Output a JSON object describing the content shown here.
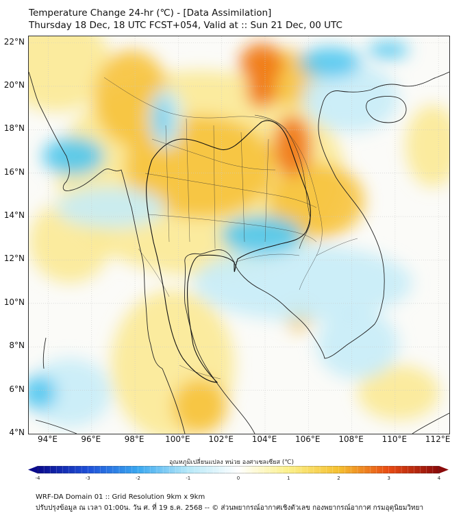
{
  "header": {
    "title": "Temperature Change 24-hr (℃) - [Data Assimilation]",
    "subtitle": "Thursday 18 Dec, 18 UTC FCST+054, Valid at :: Sun 21 Dec, 00 UTC"
  },
  "map": {
    "lat_labels": [
      "22°N",
      "20°N",
      "18°N",
      "16°N",
      "14°N",
      "12°N",
      "10°N",
      "8°N",
      "6°N",
      "4°N"
    ],
    "lon_labels": [
      "94°E",
      "96°E",
      "98°E",
      "100°E",
      "102°E",
      "104°E",
      "106°E",
      "108°E",
      "110°E",
      "112°E"
    ],
    "lat_range": [
      4,
      22.3
    ],
    "lon_range": [
      93.1,
      112.5
    ],
    "gridlines": true,
    "colors": {
      "warm_strong": "#f07a18",
      "warm": "#f7c23a",
      "warm_light": "#fbe994",
      "neutral": "#fbfbf8",
      "cool_light": "#c6ecf7",
      "cool": "#4fc6ef",
      "coastline": "#222222"
    }
  },
  "colorbar": {
    "label": "อุณหภูมิเปลี่ยนแปลง หน่วย องศาเซลเซียส (℃)",
    "ticks": [
      "-4",
      "-3",
      "-2",
      "-1",
      "0",
      "1",
      "2",
      "3",
      "4"
    ],
    "range": [
      -4,
      4
    ],
    "colors": [
      "#0a0a8c",
      "#1e50d8",
      "#3aa8f0",
      "#b6e8f8",
      "#ffffff",
      "#fbf08a",
      "#f5c030",
      "#e84a12",
      "#8a0a0a"
    ]
  },
  "footer": {
    "line1": "WRF-DA Domain 01 :: Grid Resolution 9km x 9km",
    "line2": "ปรับปรุงข้อมูล ณ เวลา 01:00น. วัน ศ. ที่ 19 ธ.ค. 2568 -- © ส่วนพยากรณ์อากาศเชิงตัวเลข กองพยากรณ์อากาศ กรมอุตุนิยมวิทยา"
  }
}
